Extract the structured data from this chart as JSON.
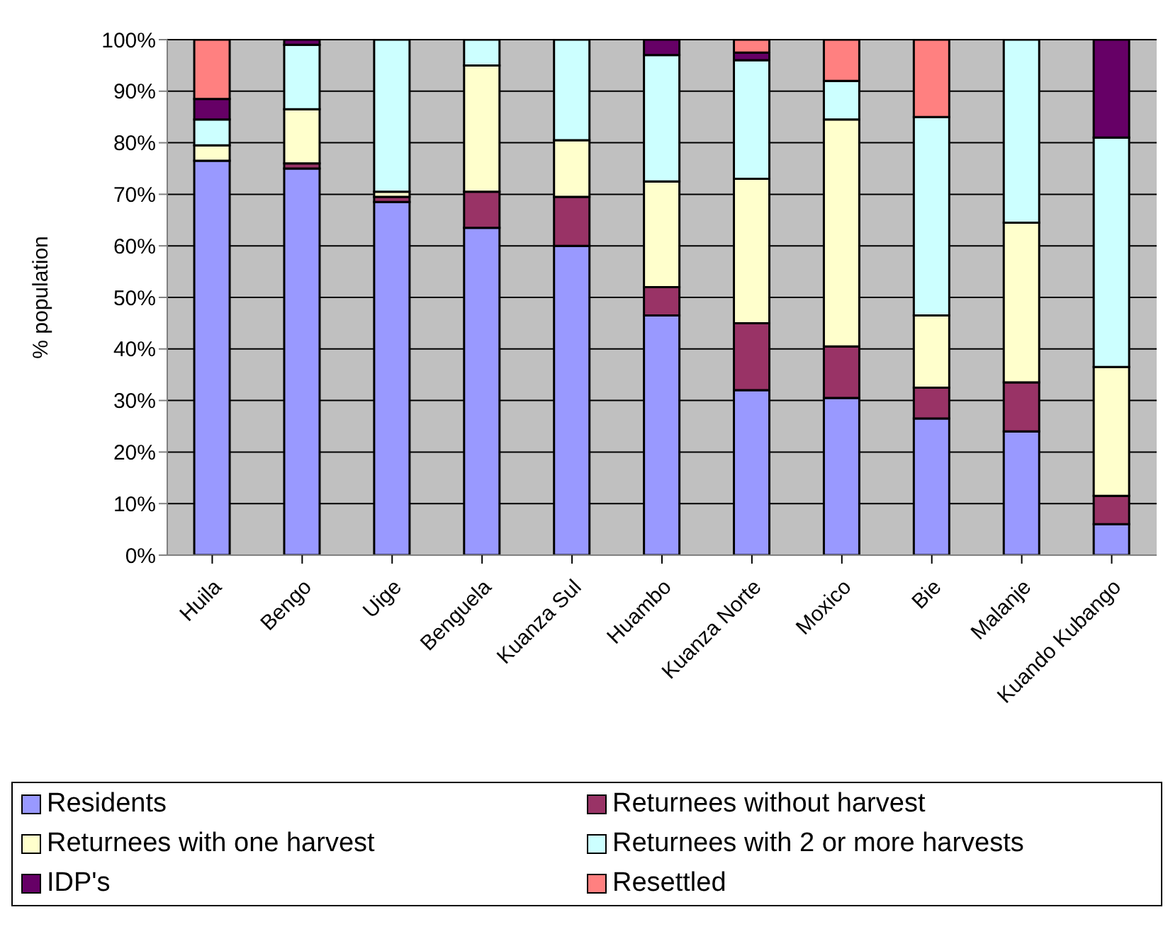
{
  "chart_data": {
    "type": "bar",
    "stacked": true,
    "ylabel": "% population",
    "categories": [
      "Huila",
      "Bengo",
      "Uige",
      "Benguela",
      "Kuanza Sul",
      "Huambo",
      "Kuanza Norte",
      "Moxico",
      "Bie",
      "Malanje",
      "Kuando Kubango"
    ],
    "series": [
      {
        "name": "Residents",
        "color": "#9999ff",
        "values": [
          76.5,
          75,
          68.5,
          63.5,
          60,
          46.5,
          32,
          30.5,
          26.5,
          24,
          6
        ]
      },
      {
        "name": "Returnees without harvest",
        "color": "#993366",
        "values": [
          0,
          1,
          1,
          7,
          9.5,
          5.5,
          13,
          10,
          6,
          9.5,
          5.5
        ]
      },
      {
        "name": "Returnees with one harvest",
        "color": "#ffffcc",
        "values": [
          3,
          10.5,
          1,
          24.5,
          11,
          20.5,
          28,
          44,
          14,
          31,
          25
        ]
      },
      {
        "name": "Returnees with 2 or more harvests",
        "color": "#ccffff",
        "values": [
          5,
          12.5,
          29.5,
          5,
          19.5,
          24.5,
          23,
          7.5,
          38.5,
          35.5,
          44.5
        ]
      },
      {
        "name": "IDP's",
        "color": "#660066",
        "values": [
          4,
          1,
          0,
          0,
          0,
          3,
          1.5,
          0,
          0,
          0,
          19
        ]
      },
      {
        "name": "Resettled",
        "color": "#ff8080",
        "values": [
          11.5,
          0,
          0,
          0,
          0,
          0,
          2.5,
          8,
          15,
          0,
          0
        ]
      }
    ],
    "ylim": [
      0,
      100
    ],
    "yticks": [
      {
        "value": 0,
        "label": "0%"
      },
      {
        "value": 10,
        "label": "10%"
      },
      {
        "value": 20,
        "label": "20%"
      },
      {
        "value": 30,
        "label": "30%"
      },
      {
        "value": 40,
        "label": "40%"
      },
      {
        "value": 50,
        "label": "50%"
      },
      {
        "value": 60,
        "label": "60%"
      },
      {
        "value": 70,
        "label": "70%"
      },
      {
        "value": 80,
        "label": "80%"
      },
      {
        "value": 90,
        "label": "90%"
      },
      {
        "value": 100,
        "label": "100%"
      }
    ],
    "grid": "y",
    "legend": "bottom"
  }
}
